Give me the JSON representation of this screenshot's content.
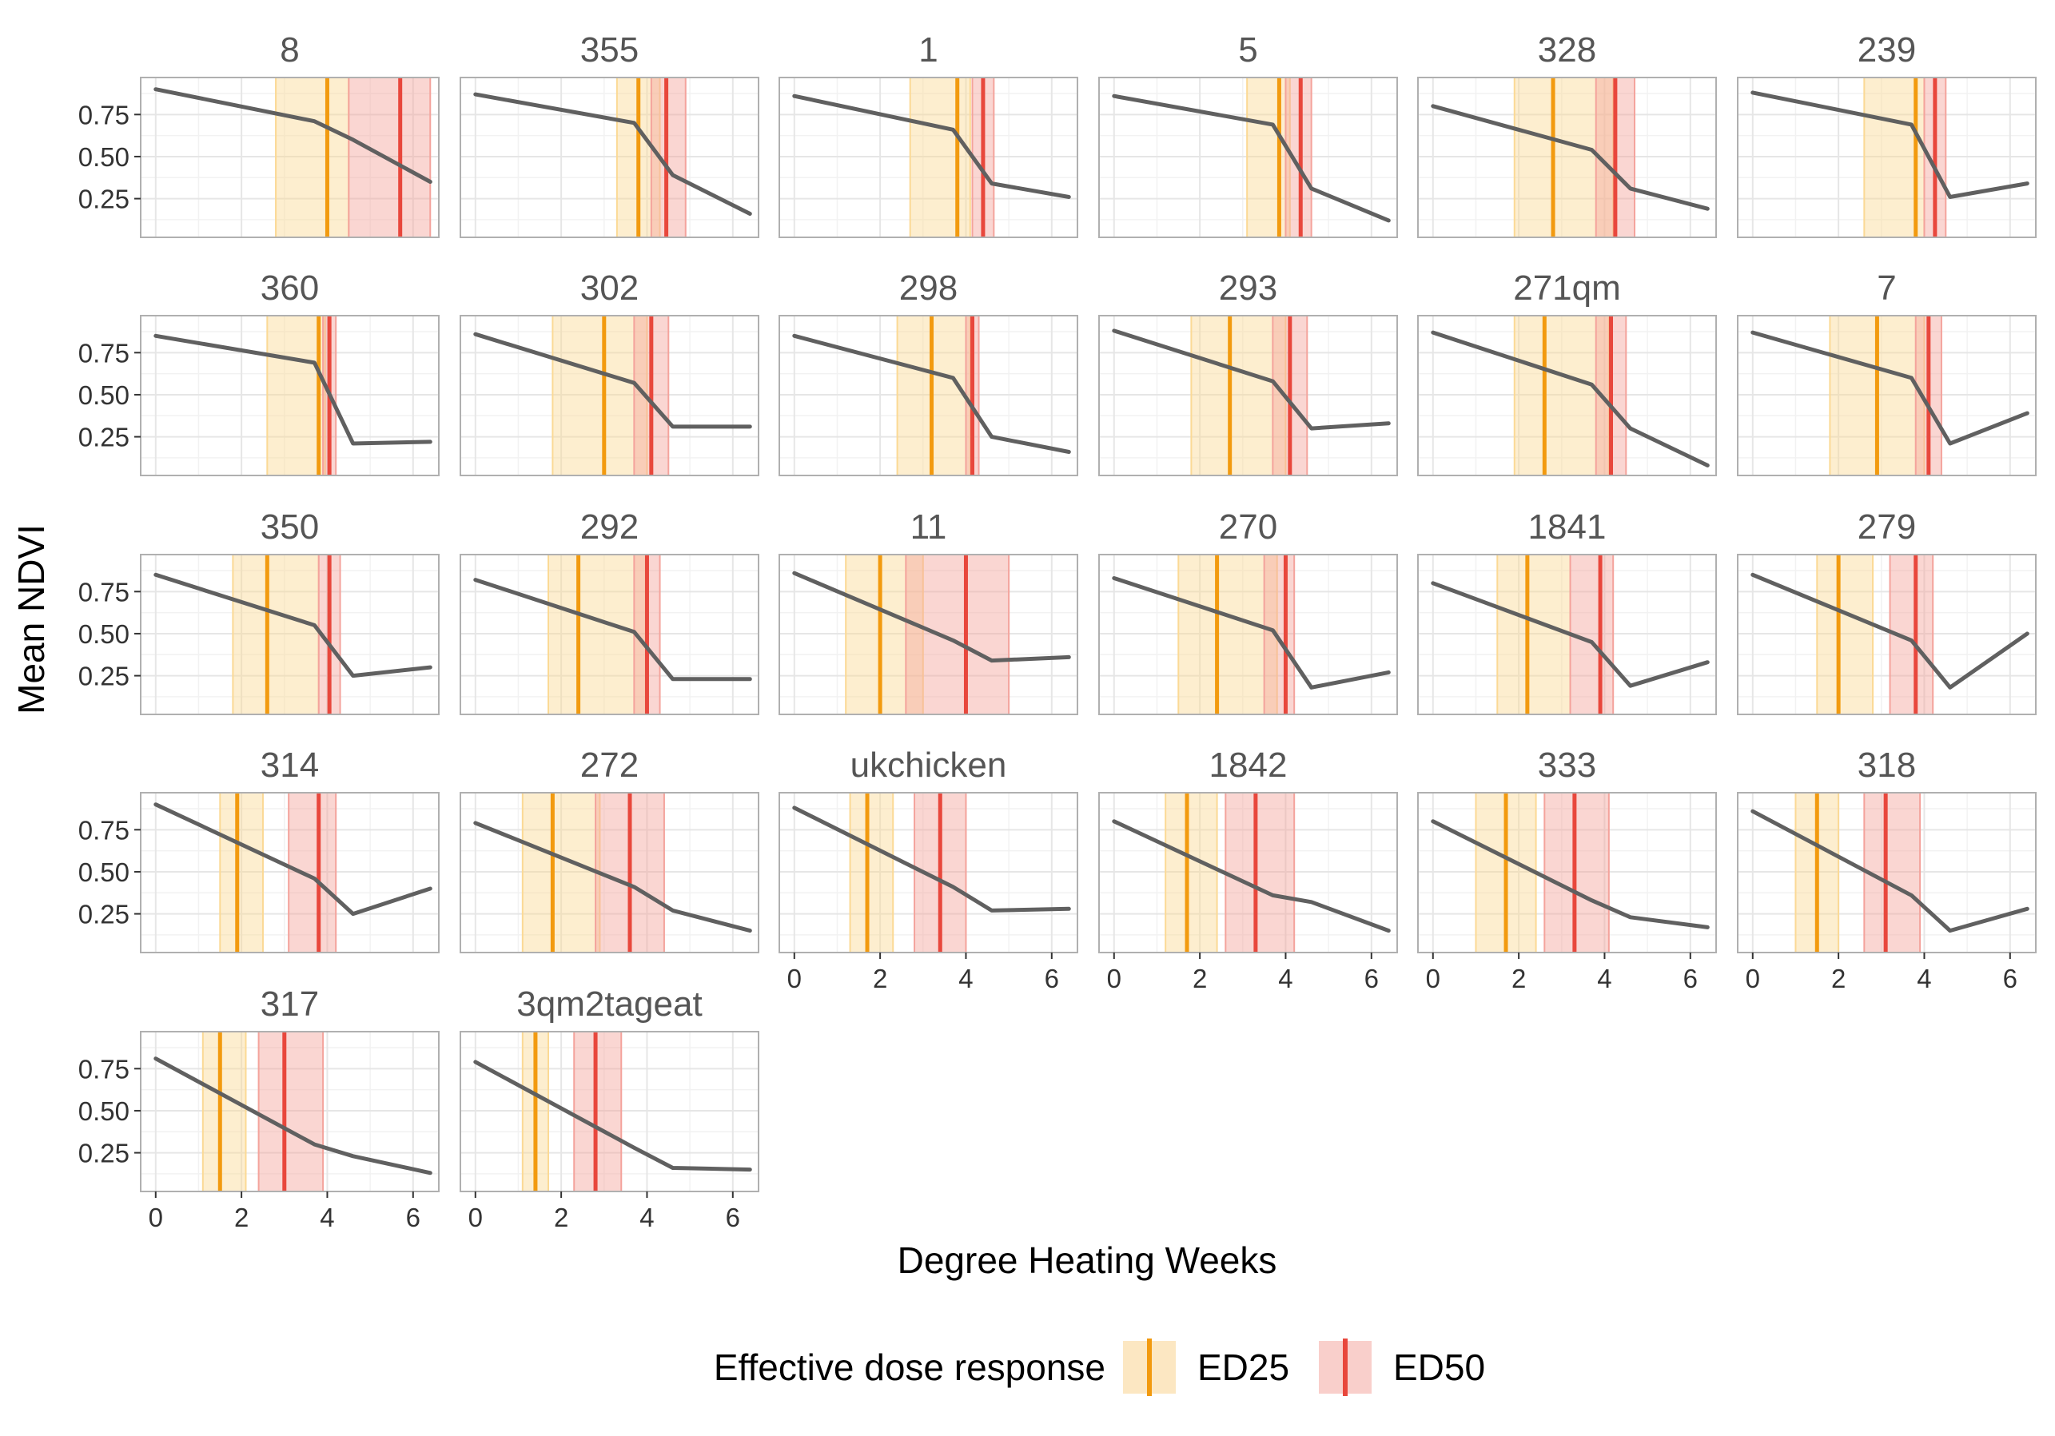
{
  "chart_data": {
    "type": "line",
    "xlabel": "Degree Heating Weeks",
    "ylabel": "Mean NDVI",
    "xlim": [
      -0.35,
      6.6
    ],
    "ylim": [
      0.02,
      0.97
    ],
    "x_ticks": [
      0,
      2,
      4,
      6
    ],
    "y_ticks": [
      0.25,
      0.5,
      0.75
    ],
    "y_tick_labels": [
      "0.25",
      "0.50",
      "0.75"
    ],
    "grid": true,
    "legend": {
      "title": "Effective dose response",
      "position": "bottom",
      "entries": [
        {
          "name": "ED25",
          "line_color": "#f29a0f",
          "band_color": "#fce7c2"
        },
        {
          "name": "ED50",
          "line_color": "#e8473c",
          "band_color": "#f9cfcb"
        }
      ]
    },
    "colors": {
      "series_line": "#606060",
      "ed25_line": "#f29a0f",
      "ed25_band": "#fbd995",
      "ed50_line": "#e8473c",
      "ed50_band": "#f4a39c",
      "panel_border": "#b0b0b0",
      "grid": "#e6e6e6",
      "strip_text": "#555555",
      "tick_text": "#333333"
    },
    "x_values": [
      0,
      3.7,
      4.6,
      6.4
    ],
    "panels": [
      {
        "title": "8",
        "y": [
          0.9,
          0.71,
          0.6,
          0.35
        ],
        "ed25": 4.0,
        "ed25_band": [
          2.8,
          4.5
        ],
        "ed50": 5.7,
        "ed50_band": [
          4.5,
          6.4
        ]
      },
      {
        "title": "355",
        "y": [
          0.87,
          0.7,
          0.39,
          0.16
        ],
        "ed25": 3.8,
        "ed25_band": [
          3.3,
          4.3
        ],
        "ed50": 4.45,
        "ed50_band": [
          4.1,
          4.9
        ]
      },
      {
        "title": "1",
        "y": [
          0.86,
          0.66,
          0.34,
          0.26
        ],
        "ed25": 3.8,
        "ed25_band": [
          2.7,
          4.1
        ],
        "ed50": 4.4,
        "ed50_band": [
          4.15,
          4.65
        ]
      },
      {
        "title": "5",
        "y": [
          0.86,
          0.69,
          0.31,
          0.12
        ],
        "ed25": 3.85,
        "ed25_band": [
          3.1,
          4.1
        ],
        "ed50": 4.35,
        "ed50_band": [
          4.0,
          4.6
        ]
      },
      {
        "title": "328",
        "y": [
          0.8,
          0.54,
          0.31,
          0.19
        ],
        "ed25": 2.8,
        "ed25_band": [
          1.9,
          4.2
        ],
        "ed50": 4.25,
        "ed50_band": [
          3.8,
          4.7
        ]
      },
      {
        "title": "239",
        "y": [
          0.88,
          0.69,
          0.26,
          0.34
        ],
        "ed25": 3.8,
        "ed25_band": [
          2.6,
          4.0
        ],
        "ed50": 4.25,
        "ed50_band": [
          4.0,
          4.5
        ]
      },
      {
        "title": "360",
        "y": [
          0.85,
          0.69,
          0.21,
          0.22
        ],
        "ed25": 3.8,
        "ed25_band": [
          2.6,
          3.95
        ],
        "ed50": 4.05,
        "ed50_band": [
          3.9,
          4.2
        ]
      },
      {
        "title": "302",
        "y": [
          0.86,
          0.57,
          0.31,
          0.31
        ],
        "ed25": 3.0,
        "ed25_band": [
          1.8,
          4.0
        ],
        "ed50": 4.1,
        "ed50_band": [
          3.7,
          4.5
        ]
      },
      {
        "title": "298",
        "y": [
          0.85,
          0.6,
          0.25,
          0.16
        ],
        "ed25": 3.2,
        "ed25_band": [
          2.4,
          4.1
        ],
        "ed50": 4.15,
        "ed50_band": [
          4.0,
          4.3
        ]
      },
      {
        "title": "293",
        "y": [
          0.88,
          0.58,
          0.3,
          0.33
        ],
        "ed25": 2.7,
        "ed25_band": [
          1.8,
          4.0
        ],
        "ed50": 4.1,
        "ed50_band": [
          3.7,
          4.5
        ]
      },
      {
        "title": "271qm",
        "y": [
          0.87,
          0.56,
          0.3,
          0.08
        ],
        "ed25": 2.6,
        "ed25_band": [
          1.9,
          4.1
        ],
        "ed50": 4.15,
        "ed50_band": [
          3.8,
          4.5
        ]
      },
      {
        "title": "7",
        "y": [
          0.87,
          0.6,
          0.21,
          0.39
        ],
        "ed25": 2.9,
        "ed25_band": [
          1.8,
          4.0
        ],
        "ed50": 4.1,
        "ed50_band": [
          3.8,
          4.4
        ]
      },
      {
        "title": "350",
        "y": [
          0.85,
          0.55,
          0.25,
          0.3
        ],
        "ed25": 2.6,
        "ed25_band": [
          1.8,
          3.8
        ],
        "ed50": 4.05,
        "ed50_band": [
          3.8,
          4.3
        ]
      },
      {
        "title": "292",
        "y": [
          0.82,
          0.51,
          0.23,
          0.23
        ],
        "ed25": 2.4,
        "ed25_band": [
          1.7,
          4.0
        ],
        "ed50": 4.0,
        "ed50_band": [
          3.7,
          4.3
        ]
      },
      {
        "title": "11",
        "y": [
          0.86,
          0.46,
          0.34,
          0.36
        ],
        "ed25": 2.0,
        "ed25_band": [
          1.2,
          3.0
        ],
        "ed50": 4.0,
        "ed50_band": [
          2.6,
          5.0
        ]
      },
      {
        "title": "270",
        "y": [
          0.83,
          0.52,
          0.18,
          0.27
        ],
        "ed25": 2.4,
        "ed25_band": [
          1.5,
          3.8
        ],
        "ed50": 4.0,
        "ed50_band": [
          3.5,
          4.2
        ]
      },
      {
        "title": "1841",
        "y": [
          0.8,
          0.45,
          0.19,
          0.33
        ],
        "ed25": 2.2,
        "ed25_band": [
          1.5,
          3.2
        ],
        "ed50": 3.9,
        "ed50_band": [
          3.2,
          4.2
        ]
      },
      {
        "title": "279",
        "y": [
          0.85,
          0.46,
          0.18,
          0.5
        ],
        "ed25": 2.0,
        "ed25_band": [
          1.5,
          2.8
        ],
        "ed50": 3.8,
        "ed50_band": [
          3.2,
          4.2
        ]
      },
      {
        "title": "314",
        "y": [
          0.9,
          0.46,
          0.25,
          0.4
        ],
        "ed25": 1.9,
        "ed25_band": [
          1.5,
          2.5
        ],
        "ed50": 3.8,
        "ed50_band": [
          3.1,
          4.2
        ]
      },
      {
        "title": "272",
        "y": [
          0.79,
          0.41,
          0.27,
          0.15
        ],
        "ed25": 1.8,
        "ed25_band": [
          1.1,
          2.9
        ],
        "ed50": 3.6,
        "ed50_band": [
          2.8,
          4.4
        ]
      },
      {
        "title": "ukchicken",
        "y": [
          0.88,
          0.41,
          0.27,
          0.28
        ],
        "ed25": 1.7,
        "ed25_band": [
          1.3,
          2.3
        ],
        "ed50": 3.4,
        "ed50_band": [
          2.8,
          4.0
        ]
      },
      {
        "title": "1842",
        "y": [
          0.8,
          0.36,
          0.32,
          0.15
        ],
        "ed25": 1.7,
        "ed25_band": [
          1.2,
          2.4
        ],
        "ed50": 3.3,
        "ed50_band": [
          2.6,
          4.2
        ]
      },
      {
        "title": "333",
        "y": [
          0.8,
          0.33,
          0.23,
          0.17
        ],
        "ed25": 1.7,
        "ed25_band": [
          1.0,
          2.4
        ],
        "ed50": 3.3,
        "ed50_band": [
          2.6,
          4.1
        ]
      },
      {
        "title": "318",
        "y": [
          0.86,
          0.36,
          0.15,
          0.28
        ],
        "ed25": 1.5,
        "ed25_band": [
          1.0,
          2.0
        ],
        "ed50": 3.1,
        "ed50_band": [
          2.6,
          3.9
        ]
      },
      {
        "title": "317",
        "y": [
          0.81,
          0.3,
          0.23,
          0.13
        ],
        "ed25": 1.5,
        "ed25_band": [
          1.1,
          2.1
        ],
        "ed50": 3.0,
        "ed50_band": [
          2.4,
          3.9
        ]
      },
      {
        "title": "3qm2tageat",
        "y": [
          0.79,
          0.28,
          0.16,
          0.15
        ],
        "ed25": 1.4,
        "ed25_band": [
          1.1,
          1.7
        ],
        "ed50": 2.8,
        "ed50_band": [
          2.3,
          3.4
        ]
      }
    ]
  }
}
